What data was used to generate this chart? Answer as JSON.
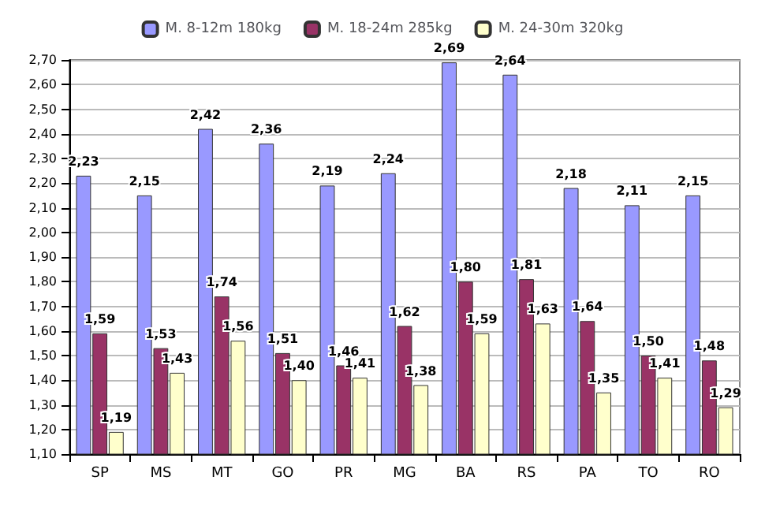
{
  "chart_data": {
    "type": "bar",
    "categories": [
      "SP",
      "MS",
      "MT",
      "GO",
      "PR",
      "MG",
      "BA",
      "RS",
      "PA",
      "TO",
      "RO"
    ],
    "series": [
      {
        "name": "M. 8-12m 180kg",
        "color": "#9999ff",
        "values": [
          2.23,
          2.15,
          2.42,
          2.36,
          2.19,
          2.24,
          2.69,
          2.64,
          2.18,
          2.11,
          2.15
        ],
        "value_labels": [
          "2,23",
          "2,15",
          "2,42",
          "2,36",
          "2,19",
          "2,24",
          "2,69",
          "2,64",
          "2,18",
          "2,11",
          "2,15"
        ]
      },
      {
        "name": "M. 18-24m 285kg",
        "color": "#993366",
        "values": [
          1.59,
          1.53,
          1.74,
          1.51,
          1.46,
          1.62,
          1.8,
          1.81,
          1.64,
          1.5,
          1.48
        ],
        "value_labels": [
          "1,59",
          "1,53",
          "1,74",
          "1,51",
          "1,46",
          "1,62",
          "1,80",
          "1,81",
          "1,64",
          "1,50",
          "1,48"
        ]
      },
      {
        "name": "M. 24-30m 320kg",
        "color": "#ffffcc",
        "values": [
          1.19,
          1.43,
          1.56,
          1.4,
          1.41,
          1.38,
          1.59,
          1.63,
          1.35,
          1.41,
          1.29
        ],
        "value_labels": [
          "1,19",
          "1,43",
          "1,56",
          "1,40",
          "1,41",
          "1,38",
          "1,59",
          "1,63",
          "1,35",
          "1,41",
          "1,29"
        ]
      }
    ],
    "ylim": [
      1.1,
      2.7
    ],
    "yticks": [
      {
        "value": 1.1,
        "label": "1,10"
      },
      {
        "value": 1.2,
        "label": "1,20"
      },
      {
        "value": 1.3,
        "label": "1,30"
      },
      {
        "value": 1.4,
        "label": "1,40"
      },
      {
        "value": 1.5,
        "label": "1,50"
      },
      {
        "value": 1.6,
        "label": "1,60"
      },
      {
        "value": 1.7,
        "label": "1,70"
      },
      {
        "value": 1.8,
        "label": "1,80"
      },
      {
        "value": 1.9,
        "label": "1,90"
      },
      {
        "value": 2.0,
        "label": "2,00"
      },
      {
        "value": 2.1,
        "label": "2,10"
      },
      {
        "value": 2.2,
        "label": "2,20"
      },
      {
        "value": 2.3,
        "label": "2,30"
      },
      {
        "value": 2.4,
        "label": "2,40"
      },
      {
        "value": 2.5,
        "label": "2,50"
      },
      {
        "value": 2.6,
        "label": "2,60"
      },
      {
        "value": 2.7,
        "label": "2,70"
      }
    ],
    "grid": "y",
    "legend": "top"
  }
}
